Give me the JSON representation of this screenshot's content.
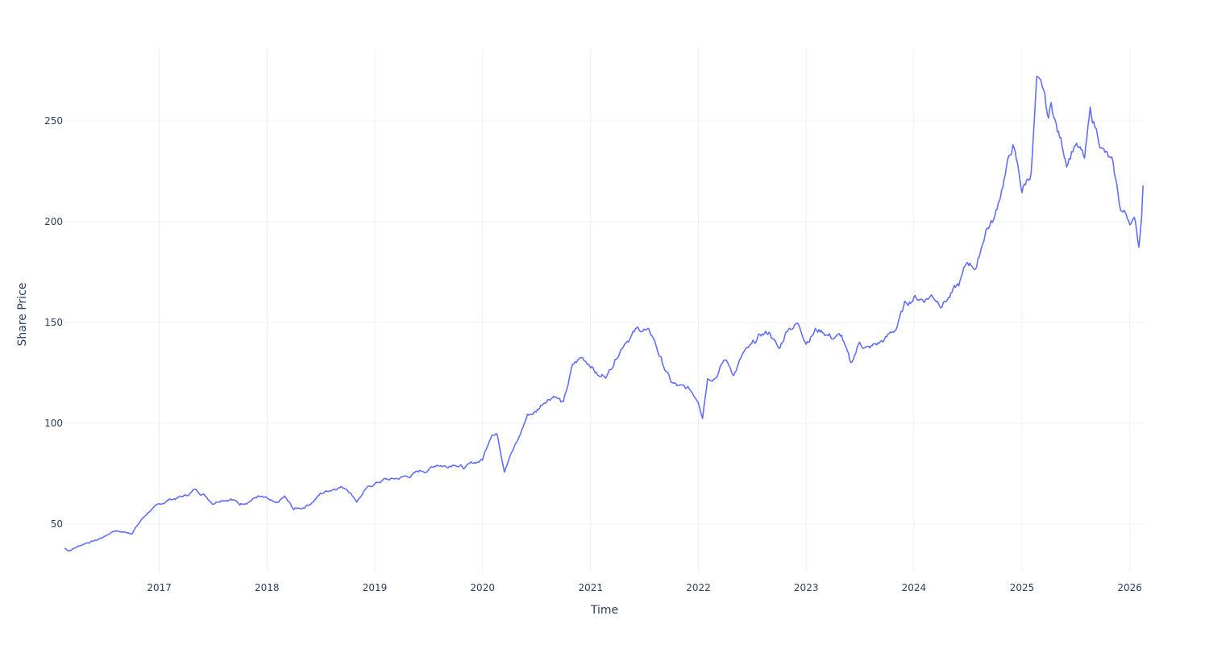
{
  "chart_data": {
    "type": "line",
    "title": "",
    "xlabel": "Time",
    "ylabel": "Share Price",
    "xlim": [
      "2016-02-15",
      "2026-02-20"
    ],
    "ylim": [
      26,
      286
    ],
    "grid": true,
    "line_color": "#636efa",
    "x_ticks": [
      "2017",
      "2018",
      "2019",
      "2020",
      "2021",
      "2022",
      "2023",
      "2024",
      "2025",
      "2026"
    ],
    "y_ticks": [
      50,
      100,
      150,
      200,
      250
    ],
    "series": [
      {
        "x": [
          "2016-02-15",
          "2016-03-01",
          "2016-04-01",
          "2016-05-01",
          "2016-06-01",
          "2016-07-01",
          "2016-08-01",
          "2016-09-01",
          "2016-10-01",
          "2016-11-01",
          "2016-12-01",
          "2017-01-01",
          "2017-02-01",
          "2017-03-01",
          "2017-04-01",
          "2017-05-01",
          "2017-06-01",
          "2017-07-01",
          "2017-08-01",
          "2017-09-01",
          "2017-10-01",
          "2017-11-01",
          "2017-12-01",
          "2018-01-01",
          "2018-02-01",
          "2018-03-01",
          "2018-04-01",
          "2018-05-01",
          "2018-06-01",
          "2018-07-01",
          "2018-08-01",
          "2018-09-01",
          "2018-10-01",
          "2018-11-01",
          "2018-12-01",
          "2019-01-01",
          "2019-02-01",
          "2019-03-01",
          "2019-04-01",
          "2019-05-01",
          "2019-06-01",
          "2019-07-01",
          "2019-08-01",
          "2019-09-01",
          "2019-10-01",
          "2019-11-01",
          "2019-12-01",
          "2020-01-01",
          "2020-02-01",
          "2020-02-20",
          "2020-03-15",
          "2020-04-01",
          "2020-05-01",
          "2020-06-01",
          "2020-07-01",
          "2020-08-01",
          "2020-09-01",
          "2020-10-01",
          "2020-11-01",
          "2020-12-01",
          "2021-01-01",
          "2021-02-01",
          "2021-03-01",
          "2021-04-01",
          "2021-05-01",
          "2021-06-01",
          "2021-07-01",
          "2021-08-01",
          "2021-09-01",
          "2021-10-01",
          "2021-11-01",
          "2021-12-01",
          "2022-01-01",
          "2022-01-15",
          "2022-02-01",
          "2022-03-01",
          "2022-04-01",
          "2022-05-01",
          "2022-06-01",
          "2022-07-01",
          "2022-08-01",
          "2022-09-01",
          "2022-10-01",
          "2022-11-01",
          "2022-12-01",
          "2023-01-01",
          "2023-02-01",
          "2023-03-01",
          "2023-04-01",
          "2023-05-01",
          "2023-06-01",
          "2023-07-01",
          "2023-08-01",
          "2023-09-01",
          "2023-10-01",
          "2023-11-01",
          "2023-12-01",
          "2024-01-01",
          "2024-02-01",
          "2024-03-01",
          "2024-04-01",
          "2024-05-01",
          "2024-06-01",
          "2024-07-01",
          "2024-08-01",
          "2024-09-01",
          "2024-10-01",
          "2024-11-01",
          "2024-12-01",
          "2025-01-01",
          "2025-02-01",
          "2025-02-20",
          "2025-03-01",
          "2025-03-15",
          "2025-04-01",
          "2025-04-10",
          "2025-05-01",
          "2025-06-01",
          "2025-07-01",
          "2025-08-01",
          "2025-08-20",
          "2025-09-01",
          "2025-10-01",
          "2025-11-01",
          "2025-12-01",
          "2026-01-01",
          "2026-01-20",
          "2026-02-01",
          "2026-02-10",
          "2026-02-15"
        ],
        "y": [
          38,
          37,
          39,
          41,
          42,
          44,
          47,
          46,
          46,
          52,
          57,
          59,
          62,
          63,
          64,
          67,
          65,
          61,
          63,
          63,
          60,
          62,
          64,
          62,
          59,
          63,
          57,
          58,
          61,
          65,
          67,
          69,
          68,
          62,
          67,
          70,
          72,
          72,
          73,
          74,
          76,
          77,
          80,
          79,
          81,
          78,
          80,
          82,
          96,
          95,
          78,
          85,
          92,
          104,
          106,
          112,
          115,
          110,
          128,
          132,
          130,
          123,
          125,
          135,
          143,
          146,
          147,
          142,
          130,
          120,
          117,
          116,
          112,
          105,
          124,
          125,
          132,
          125,
          134,
          137,
          143,
          145,
          136,
          148,
          150,
          142,
          147,
          146,
          143,
          143,
          128,
          140,
          137,
          139,
          142,
          147,
          158,
          163,
          162,
          164,
          161,
          164,
          168,
          179,
          178,
          197,
          202,
          222,
          238,
          215,
          225,
          268,
          265,
          262,
          248,
          258,
          245,
          231,
          241,
          230,
          252,
          248,
          237,
          228,
          205,
          201,
          200,
          188,
          205,
          218
        ]
      }
    ]
  }
}
